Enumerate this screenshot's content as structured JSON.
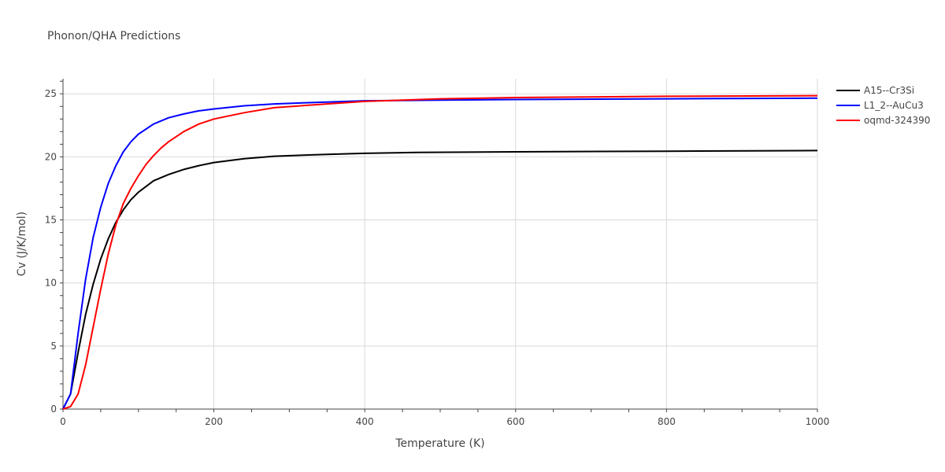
{
  "chart_data": {
    "type": "line",
    "title": "Phonon/QHA Predictions",
    "xlabel": "Temperature (K)",
    "ylabel": "Cv (J/K/mol)",
    "xlim": [
      0,
      1000
    ],
    "ylim": [
      0,
      26.2
    ],
    "xticks": [
      0,
      200,
      400,
      600,
      800,
      1000
    ],
    "xtick_labels": [
      "0",
      "200",
      "400",
      "600",
      "800",
      "1000"
    ],
    "yticks": [
      0,
      5,
      10,
      15,
      20,
      25
    ],
    "ytick_labels": [
      "0",
      "5",
      "10",
      "15",
      "20",
      "25"
    ],
    "grid": true,
    "legend_position": "right",
    "series": [
      {
        "name": "A15--Cr3Si",
        "color": "#000000",
        "x": [
          0,
          10,
          20,
          30,
          40,
          50,
          60,
          70,
          80,
          90,
          100,
          120,
          140,
          160,
          180,
          200,
          240,
          280,
          350,
          400,
          470,
          600,
          800,
          1000
        ],
        "y": [
          0,
          1.2,
          4.5,
          7.5,
          9.9,
          11.9,
          13.5,
          14.8,
          15.8,
          16.6,
          17.2,
          18.1,
          18.6,
          19.0,
          19.3,
          19.55,
          19.85,
          20.05,
          20.2,
          20.28,
          20.35,
          20.4,
          20.45,
          20.5
        ]
      },
      {
        "name": "L1_2--AuCu3",
        "color": "#0000ff",
        "x": [
          0,
          10,
          20,
          30,
          40,
          50,
          60,
          70,
          80,
          90,
          100,
          120,
          140,
          160,
          180,
          200,
          240,
          280,
          350,
          400,
          500,
          600,
          800,
          1000
        ],
        "y": [
          0,
          1.2,
          6.0,
          10.3,
          13.6,
          16.0,
          17.9,
          19.3,
          20.4,
          21.2,
          21.8,
          22.6,
          23.1,
          23.4,
          23.65,
          23.8,
          24.05,
          24.2,
          24.35,
          24.45,
          24.5,
          24.55,
          24.6,
          24.65
        ]
      },
      {
        "name": "oqmd-324390",
        "color": "#ff0000",
        "x": [
          0,
          10,
          20,
          30,
          40,
          50,
          60,
          70,
          80,
          90,
          100,
          110,
          120,
          130,
          140,
          160,
          180,
          200,
          240,
          280,
          350,
          400,
          500,
          600,
          800,
          1000
        ],
        "y": [
          0,
          0.2,
          1.2,
          3.5,
          6.5,
          9.5,
          12.3,
          14.6,
          16.3,
          17.5,
          18.5,
          19.4,
          20.1,
          20.7,
          21.2,
          22.0,
          22.6,
          23.0,
          23.5,
          23.9,
          24.2,
          24.4,
          24.6,
          24.7,
          24.8,
          24.85
        ]
      }
    ]
  }
}
